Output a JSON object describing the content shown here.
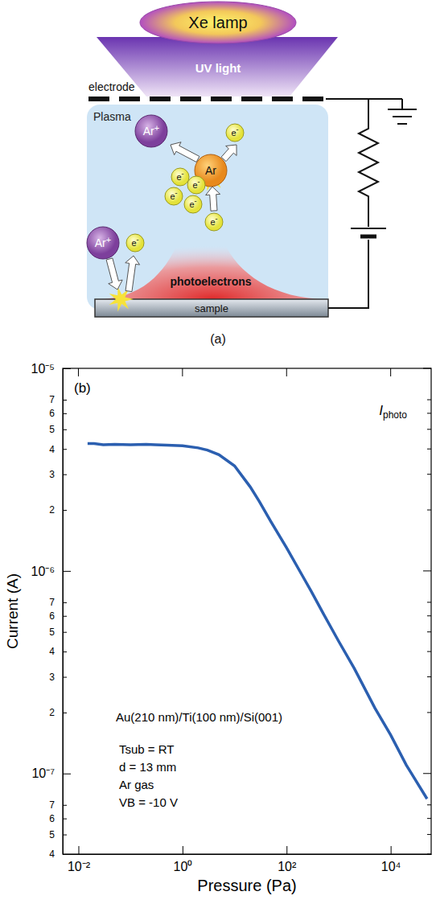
{
  "diagram": {
    "lamp": "Xe lamp",
    "light": "UV light",
    "electrode": "electrode",
    "region": "Plasma",
    "particles": [
      "Ar+",
      "e-",
      "Ar",
      "e-",
      "e-",
      "e-",
      "e-",
      "e-",
      "Ar+",
      "e-"
    ],
    "beam": "photoelectrons",
    "sample": "sample",
    "label": "(a)"
  },
  "chart_data": {
    "type": "line",
    "panel_label": "(b)",
    "x_label": "Pressure (Pa)",
    "y_label": "Current (A)",
    "log": true,
    "legend": "top-right",
    "xlim": [
      0.005,
      60000
    ],
    "ylim": [
      4e-08,
      1e-05
    ],
    "xticks": [
      {
        "value": 0.01,
        "label": "10⁻²"
      },
      {
        "value": 1,
        "label": "10⁰"
      },
      {
        "value": 100,
        "label": "10²"
      },
      {
        "value": 10000,
        "label": "10⁴"
      }
    ],
    "yticks": [
      {
        "value": 1e-05,
        "label": "10⁻⁵"
      },
      {
        "value": 7e-06,
        "label": "7"
      },
      {
        "value": 6e-06,
        "label": "6"
      },
      {
        "value": 5e-06,
        "label": "5"
      },
      {
        "value": 4e-06,
        "label": "4"
      },
      {
        "value": 3e-06,
        "label": "3"
      },
      {
        "value": 2e-06,
        "label": "2"
      },
      {
        "value": 1e-06,
        "label": "10⁻⁶"
      },
      {
        "value": 7e-07,
        "label": "7"
      },
      {
        "value": 6e-07,
        "label": "6"
      },
      {
        "value": 5e-07,
        "label": "5"
      },
      {
        "value": 4e-07,
        "label": "4"
      },
      {
        "value": 3e-07,
        "label": "3"
      },
      {
        "value": 2e-07,
        "label": "2"
      },
      {
        "value": 1e-07,
        "label": "10⁻⁷"
      },
      {
        "value": 7e-08,
        "label": "7"
      },
      {
        "value": 6e-08,
        "label": "6"
      },
      {
        "value": 5e-08,
        "label": "5"
      },
      {
        "value": 4e-08,
        "label": "4"
      }
    ],
    "x": [
      0.015,
      0.02,
      0.03,
      0.05,
      0.1,
      0.2,
      0.3,
      0.5,
      1,
      2,
      3,
      5,
      10,
      20,
      30,
      50,
      100,
      200,
      300,
      500,
      1000,
      2000,
      5000,
      10000,
      20000,
      50000
    ],
    "series": [
      {
        "name": "Iphoto",
        "color": "#2b5fb0",
        "line_style": "solid",
        "values": [
          4.25e-06,
          4.25e-06,
          4.2e-06,
          4.22e-06,
          4.2e-06,
          4.22e-06,
          4.2e-06,
          4.18e-06,
          4.15e-06,
          4.05e-06,
          3.95e-06,
          3.75e-06,
          3.3e-06,
          2.6e-06,
          2.2e-06,
          1.75e-06,
          1.3e-06,
          9.5e-07,
          7.9e-07,
          6.2e-07,
          4.5e-07,
          3.3e-07,
          2.1e-07,
          1.55e-07,
          1.1e-07,
          7.5e-08
        ]
      }
    ],
    "annotations": [
      "Au(210 nm)/Ti(100 nm)/Si(001)",
      "Tsub = RT",
      "d = 13 mm",
      "Ar gas",
      "VB = -10 V"
    ]
  }
}
